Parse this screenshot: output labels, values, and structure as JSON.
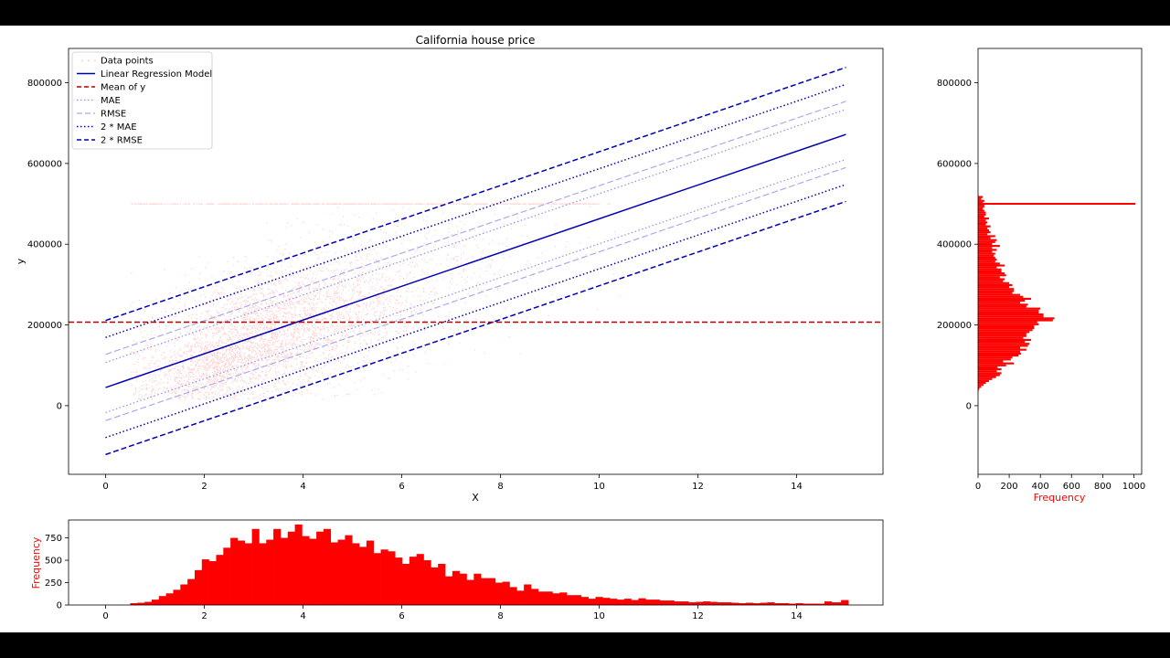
{
  "chart_data": [
    {
      "type": "scatter",
      "title": "California house price",
      "xlabel": "X",
      "ylabel": "y",
      "xlim": [
        -0.75,
        15.75
      ],
      "ylim": [
        -170000,
        885000
      ],
      "xticks": [
        0,
        2,
        4,
        6,
        8,
        10,
        12,
        14
      ],
      "yticks": [
        0,
        200000,
        400000,
        600000,
        800000
      ],
      "colors": {
        "points": "#ff0000",
        "model": "#0000b3",
        "mean": "#b30000",
        "mae": "#9090ee",
        "rmse": "#aaaaee",
        "mae2": "#0000b3",
        "rmse2": "#0000b3"
      },
      "legend": {
        "placement": "upper-left",
        "entries": [
          "Data points",
          "Linear Regression Model",
          "Mean of y",
          "MAE",
          "RMSE",
          "2 * MAE",
          "2 * RMSE"
        ]
      },
      "series": [
        {
          "name": "Linear Regression Model",
          "x": [
            0,
            15
          ],
          "y": [
            45000,
            672000
          ]
        },
        {
          "name": "Mean of y",
          "y": 207000
        },
        {
          "name": "MAE",
          "offset": 62000
        },
        {
          "name": "RMSE",
          "offset": 82000
        },
        {
          "name": "2 * MAE",
          "offset": 124000
        },
        {
          "name": "2 * RMSE",
          "offset": 166000
        }
      ],
      "data_points_clusters": [
        {
          "cx": 3.2,
          "cy": 170000,
          "sx": 1.3,
          "sy": 75000,
          "n": 2600
        },
        {
          "cx": 4.4,
          "cy": 235000,
          "sx": 1.6,
          "sy": 90000,
          "n": 1000
        },
        {
          "cx": 2.2,
          "cy": 95000,
          "sx": 0.6,
          "sy": 30000,
          "n": 500
        },
        {
          "cx": 6.5,
          "cy": 330000,
          "sx": 1.8,
          "sy": 100000,
          "n": 300
        }
      ],
      "capped_value": 500000
    },
    {
      "type": "bar",
      "orientation": "horizontal",
      "xlabel": "Frequency",
      "xlim": [
        0,
        1050
      ],
      "xticks": [
        0,
        200,
        400,
        600,
        800,
        1000
      ],
      "ylim": [
        -170000,
        885000
      ],
      "yticks": [
        0,
        200000,
        400000,
        600000,
        800000
      ],
      "color": "#ff0000",
      "bin_edges_start": 15000,
      "bin_width": 4850,
      "values": [
        0,
        0,
        0,
        0,
        3,
        8,
        20,
        35,
        50,
        70,
        90,
        115,
        140,
        150,
        120,
        150,
        125,
        180,
        230,
        160,
        210,
        220,
        260,
        275,
        270,
        310,
        270,
        320,
        330,
        300,
        340,
        290,
        310,
        310,
        330,
        350,
        360,
        360,
        390,
        380,
        480,
        490,
        420,
        420,
        390,
        390,
        400,
        310,
        320,
        270,
        300,
        340,
        290,
        270,
        220,
        230,
        230,
        200,
        220,
        200,
        160,
        170,
        140,
        180,
        170,
        150,
        150,
        120,
        170,
        140,
        110,
        120,
        110,
        100,
        110,
        90,
        120,
        90,
        140,
        90,
        110,
        120,
        80,
        110,
        60,
        80,
        70,
        60,
        80,
        50,
        60,
        50,
        70,
        40,
        50,
        50,
        40,
        30,
        40,
        40,
        30,
        40,
        20,
        30,
        1010
      ],
      "threshold_line": {
        "y": 500000,
        "x_end": 1010
      }
    },
    {
      "type": "bar",
      "ylabel": "Frequency",
      "xlim": [
        -0.75,
        15.75
      ],
      "xticks": [
        0,
        2,
        4,
        6,
        8,
        10,
        12,
        14
      ],
      "ylim": [
        0,
        950
      ],
      "yticks": [
        0,
        250,
        500,
        750
      ],
      "color": "#ff0000",
      "bin_start": 0.5,
      "bin_width": 0.145,
      "values": [
        20,
        25,
        35,
        60,
        100,
        130,
        170,
        230,
        290,
        390,
        510,
        490,
        560,
        640,
        750,
        720,
        690,
        850,
        690,
        730,
        850,
        750,
        820,
        900,
        770,
        740,
        820,
        850,
        700,
        730,
        780,
        690,
        650,
        720,
        580,
        620,
        600,
        530,
        460,
        540,
        570,
        500,
        420,
        460,
        320,
        380,
        350,
        280,
        350,
        300,
        300,
        250,
        260,
        200,
        160,
        230,
        180,
        150,
        150,
        130,
        140,
        110,
        110,
        90,
        70,
        90,
        80,
        70,
        60,
        70,
        55,
        75,
        60,
        60,
        50,
        50,
        40,
        40,
        30,
        35,
        40,
        35,
        30,
        30,
        25,
        20,
        25,
        20,
        25,
        30,
        20,
        20,
        15,
        20,
        15,
        15,
        15,
        40,
        30,
        30,
        25,
        25,
        20,
        15,
        20,
        15,
        15,
        10,
        20,
        15,
        10,
        10,
        10,
        10,
        8,
        10,
        10,
        10,
        10,
        10,
        8,
        5,
        5,
        10,
        5,
        5,
        5,
        5,
        5,
        5,
        5,
        5,
        5,
        5,
        5,
        5,
        3,
        3,
        3,
        3,
        3,
        3,
        3,
        3,
        3,
        3,
        3,
        3,
        3,
        3,
        2,
        2,
        2,
        2,
        2,
        2,
        2,
        2,
        2,
        2,
        2,
        2,
        2,
        2,
        2,
        2,
        2,
        2,
        2,
        2,
        2,
        2,
        2,
        2,
        2,
        2,
        2,
        2,
        2,
        2,
        2,
        2,
        2,
        2,
        2,
        2,
        2,
        55
      ]
    }
  ]
}
